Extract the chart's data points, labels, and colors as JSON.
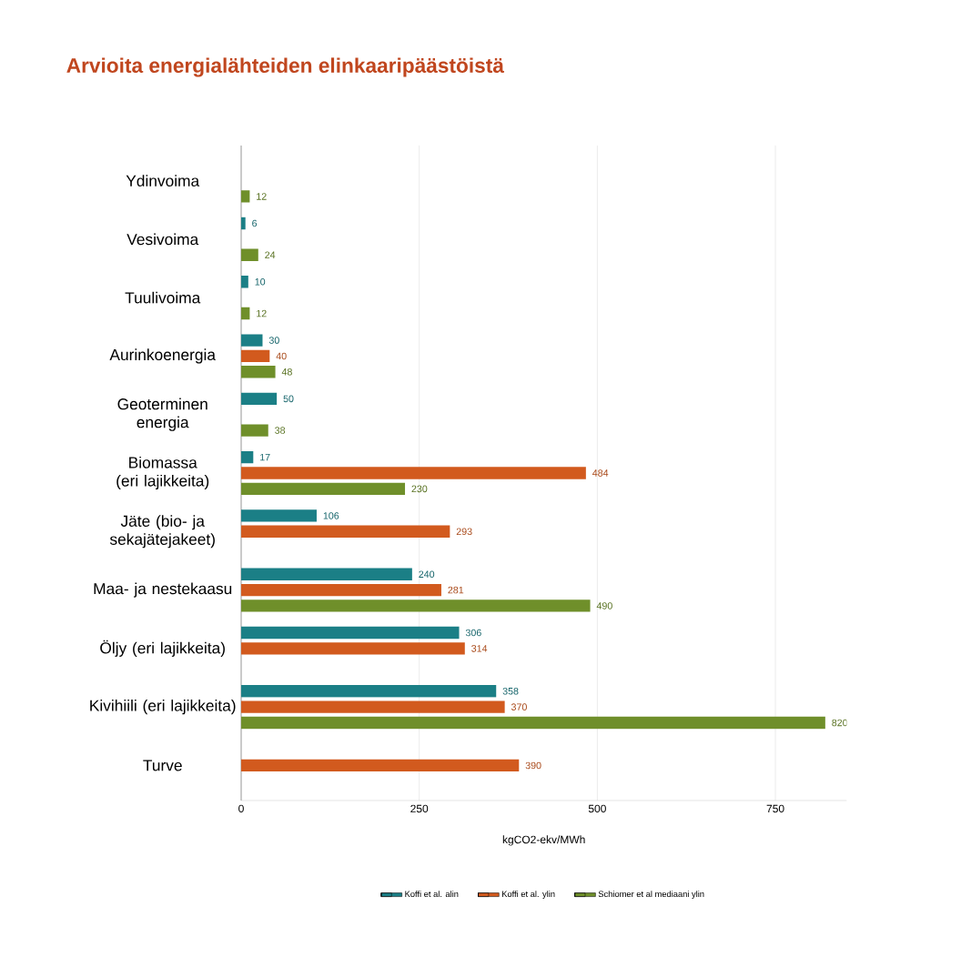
{
  "chart_data": {
    "type": "bar",
    "orientation": "horizontal",
    "title": "Arvioita energialähteiden elinkaaripäästöistä",
    "xlabel": "kgCO2-ekv/MWh",
    "categories": [
      "Ydinvoima",
      "Vesivoima",
      "Tuulivoima",
      "Aurinkoenergia",
      "Geoterminen energia",
      "Biomassa (eri lajikkeita)",
      "Jäte (bio- ja sekajätejakeet)",
      "Maa- ja nestekaasu",
      "Öljy (eri lajikkeita)",
      "Kivihiili (eri lajikkeita)",
      "Turve"
    ],
    "series": [
      {
        "name": "Koffi et al. alin",
        "color": "#1b7f86",
        "values": [
          null,
          6,
          10,
          30,
          50,
          17,
          106,
          240,
          306,
          358,
          null
        ]
      },
      {
        "name": "Koffi et al. ylin",
        "color": "#d25a1e",
        "values": [
          null,
          null,
          null,
          40,
          null,
          484,
          293,
          281,
          314,
          370,
          390
        ]
      },
      {
        "name": "Schiomer et al mediaani ylin",
        "color": "#6f8f2a",
        "values": [
          12,
          24,
          12,
          48,
          38,
          230,
          null,
          490,
          null,
          820,
          null
        ]
      }
    ],
    "xlim": [
      0,
      850
    ],
    "xticks": [
      0,
      250,
      500,
      750
    ],
    "grid": "x",
    "legend": "bottom",
    "data_labels": true
  }
}
